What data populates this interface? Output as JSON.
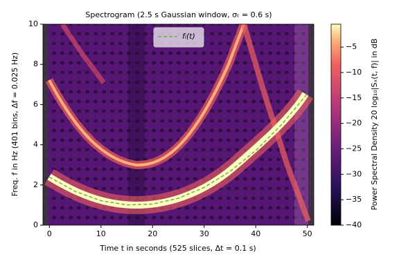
{
  "chart_data": {
    "type": "line",
    "title": "Spectrogram (2.5 s Gaussian window, σₜ = 0.6 s)",
    "x_label": "Time t in seconds (525 slices, Δt = 0.1 s)",
    "y_label": "Freq. f in Hz (401 bins, Δf = 0.025 Hz)",
    "colorbar_label": "Power Spectral Density 20 log₁₀|Sₓ(t, f)| in dB",
    "xlim": [
      -1.25,
      51.25
    ],
    "xticks": [
      0,
      10,
      20,
      30,
      40,
      50
    ],
    "ylim": [
      0,
      10
    ],
    "yticks": [
      0,
      2,
      4,
      6,
      8,
      10
    ],
    "clim": [
      -40,
      -0.5
    ],
    "cticks": [
      {
        "value": -5,
        "label": "−5"
      },
      {
        "value": -10,
        "label": "−10"
      },
      {
        "value": -15,
        "label": "−15"
      },
      {
        "value": -20,
        "label": "−20"
      },
      {
        "value": -25,
        "label": "−25"
      },
      {
        "value": -30,
        "label": "−30"
      },
      {
        "value": -35,
        "label": "−35"
      },
      {
        "value": -40,
        "label": "−40"
      }
    ],
    "legend": "upper center",
    "x": [
      0,
      5,
      10,
      15,
      20,
      25,
      30,
      35,
      40,
      45,
      50
    ],
    "series": [
      {
        "name": "fᵢ(t)",
        "color": "#6ab04c",
        "values": [
          2.39,
          1.68,
          1.22,
          1.01,
          1.05,
          1.34,
          1.88,
          2.67,
          3.71,
          5.0,
          6.54
        ]
      }
    ]
  }
}
